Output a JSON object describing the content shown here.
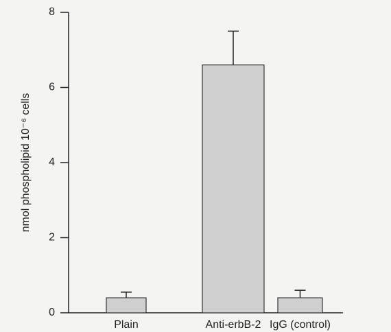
{
  "chart_data": {
    "type": "bar",
    "ylabel": "nmol phospholipid 10⁻⁶ cells",
    "categories": [
      "Plain",
      "Anti-erbB-2",
      "IgG (control)"
    ],
    "values": [
      0.4,
      6.6,
      0.4
    ],
    "errors": [
      0.15,
      0.9,
      0.2
    ],
    "color": "#cfcfcf",
    "ylim": [
      0,
      8
    ],
    "yticks": [
      0,
      2,
      4,
      6,
      8
    ]
  }
}
